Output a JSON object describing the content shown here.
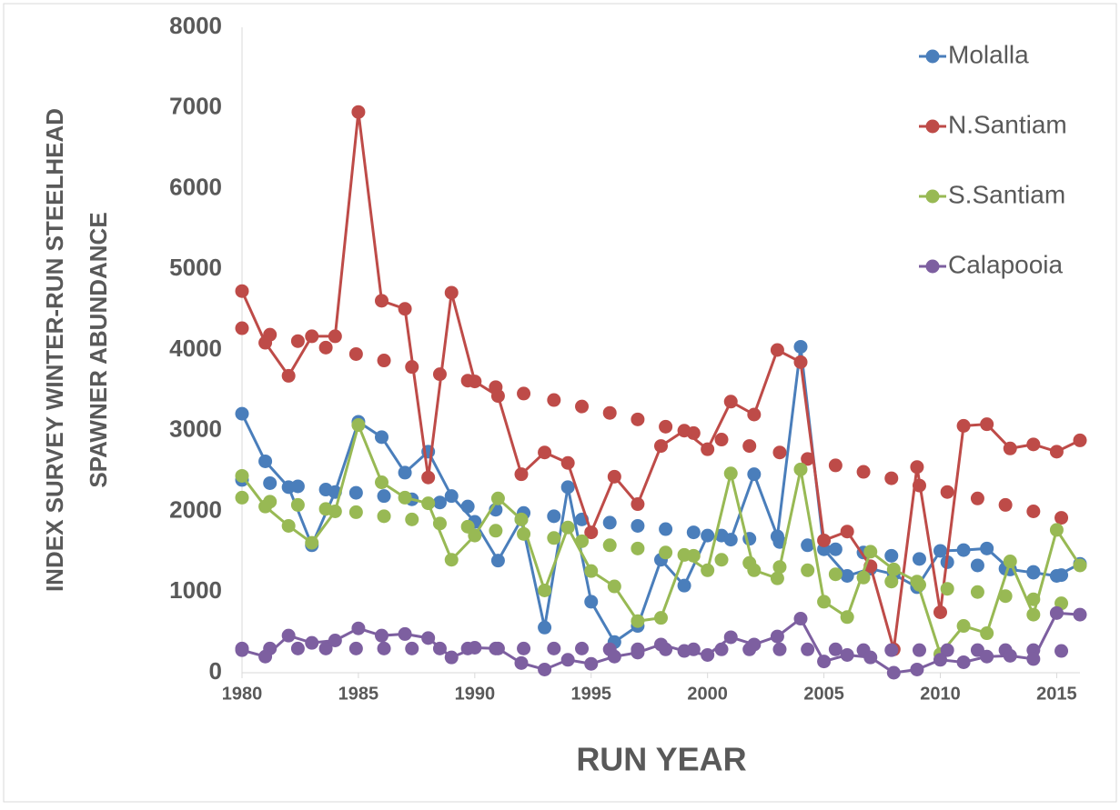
{
  "chart_data": {
    "type": "line",
    "xlabel": "RUN YEAR",
    "ylabel": [
      "INDEX SURVEY WINTER-RUN STEELHEAD",
      "SPAWNER ABUNDANCE"
    ],
    "legend": "upper right",
    "xlim": [
      1980,
      2016
    ],
    "xticks": [
      1980,
      1985,
      1990,
      1995,
      2000,
      2005,
      2010,
      2015
    ],
    "ylim": [
      0,
      8000
    ],
    "yticks": [
      0,
      1000,
      2000,
      3000,
      4000,
      5000,
      6000,
      7000,
      8000
    ],
    "x": [
      1980,
      1981,
      1982,
      1983,
      1984,
      1985,
      1986,
      1987,
      1988,
      1989,
      1990,
      1991,
      1992,
      1993,
      1994,
      1995,
      1996,
      1997,
      1998,
      1999,
      2000,
      2001,
      2002,
      2003,
      2004,
      2005,
      2006,
      2007,
      2008,
      2009,
      2010,
      2011,
      2012,
      2013,
      2014,
      2015,
      2016
    ],
    "trend_x": [
      1980,
      1981.2,
      1982.4,
      1983.6,
      1984.9,
      1986.1,
      1987.3,
      1988.5,
      1989.7,
      1990.9,
      1992.1,
      1993.4,
      1994.6,
      1995.8,
      1997,
      1998.2,
      1999.4,
      2000.6,
      2001.8,
      2003.1,
      2004.3,
      2005.5,
      2006.7,
      2007.9,
      2009.1,
      2010.3,
      2011.6,
      2012.8,
      2014,
      2015.2
    ],
    "series": [
      {
        "name": "Molalla",
        "color": "#4a7ebb",
        "values": [
          3210,
          2620,
          2300,
          1580,
          2240,
          3110,
          2920,
          2480,
          2740,
          2190,
          1870,
          1390,
          1900,
          560,
          2300,
          880,
          380,
          580,
          1400,
          1080,
          1700,
          1650,
          2460,
          1690,
          4040,
          1530,
          1200,
          1290,
          1220,
          1060,
          1510,
          1520,
          1540,
          1280,
          1240,
          1200,
          1350
        ],
        "trend_values": [
          2390,
          2350,
          2310,
          2270,
          2230,
          2190,
          2150,
          2110,
          2060,
          2020,
          1980,
          1940,
          1900,
          1860,
          1820,
          1780,
          1740,
          1700,
          1660,
          1620,
          1580,
          1530,
          1490,
          1450,
          1410,
          1370,
          1330,
          1290,
          1250,
          1210
        ]
      },
      {
        "name": "N.Santiam",
        "color": "#be4b48",
        "values": [
          4730,
          4090,
          3680,
          4170,
          4170,
          6950,
          4610,
          4510,
          2420,
          4710,
          3610,
          3430,
          2460,
          2730,
          2600,
          1740,
          2430,
          2090,
          2810,
          3000,
          2770,
          3360,
          3200,
          4000,
          3850,
          1640,
          1750,
          1320,
          290,
          2550,
          750,
          3060,
          3080,
          2780,
          2830,
          2740,
          2880
        ],
        "trend_values": [
          4270,
          4190,
          4110,
          4030,
          3950,
          3870,
          3790,
          3700,
          3620,
          3540,
          3460,
          3380,
          3300,
          3220,
          3140,
          3050,
          2970,
          2890,
          2810,
          2730,
          2650,
          2570,
          2490,
          2410,
          2320,
          2240,
          2160,
          2080,
          2000,
          1920
        ]
      },
      {
        "name": "S.Santiam",
        "color": "#98b954",
        "values": [
          2440,
          2060,
          1820,
          1610,
          2000,
          3070,
          2360,
          2170,
          2100,
          1400,
          1700,
          2160,
          1900,
          1020,
          1800,
          1260,
          1070,
          640,
          680,
          1460,
          1270,
          2470,
          1270,
          1170,
          2520,
          880,
          690,
          1500,
          1280,
          1130,
          230,
          580,
          490,
          1380,
          720,
          1770,
          1330
        ],
        "trend_values": [
          2170,
          2120,
          2080,
          2030,
          1990,
          1940,
          1900,
          1850,
          1810,
          1760,
          1720,
          1670,
          1630,
          1580,
          1540,
          1490,
          1450,
          1400,
          1360,
          1310,
          1270,
          1220,
          1180,
          1130,
          1090,
          1040,
          1000,
          950,
          910,
          860
        ]
      },
      {
        "name": "Calapooia",
        "color": "#7d5fa0",
        "values": [
          280,
          200,
          460,
          370,
          400,
          550,
          460,
          480,
          430,
          190,
          310,
          300,
          120,
          40,
          160,
          110,
          200,
          250,
          350,
          270,
          220,
          440,
          350,
          450,
          670,
          140,
          220,
          190,
          0,
          40,
          160,
          130,
          200,
          210,
          170,
          740,
          720
        ],
        "trend_values": [
          300,
          300,
          300,
          300,
          300,
          300,
          300,
          300,
          300,
          300,
          300,
          300,
          300,
          290,
          290,
          290,
          290,
          290,
          290,
          290,
          290,
          290,
          280,
          280,
          280,
          280,
          280,
          280,
          280,
          270
        ]
      }
    ]
  }
}
